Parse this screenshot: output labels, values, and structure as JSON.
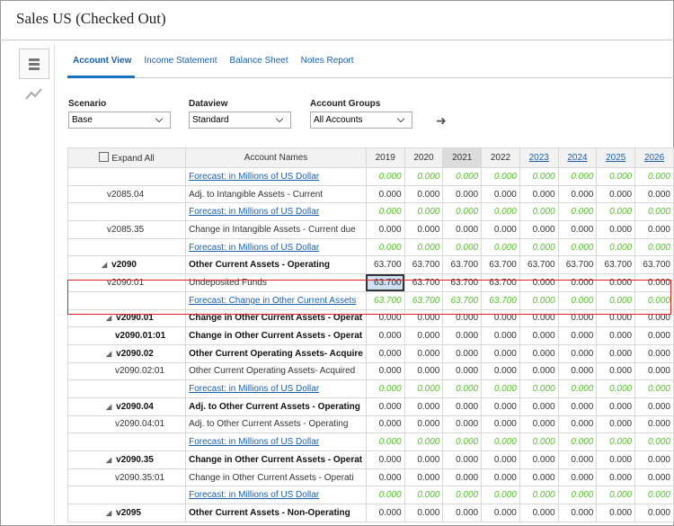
{
  "header": {
    "title": "Sales US (Checked Out)"
  },
  "tabs": [
    "Account View",
    "Income Statement",
    "Balance Sheet",
    "Notes Report"
  ],
  "filters": [
    {
      "label": "Scenario",
      "value": "Base"
    },
    {
      "label": "Dataview",
      "value": "Standard"
    },
    {
      "label": "Account Groups",
      "value": "All Accounts"
    }
  ],
  "table": {
    "expand_all": "Expand All",
    "columns": [
      "Account Names",
      "2019",
      "2020",
      "2021",
      "2022",
      "2023",
      "2024",
      "2025",
      "2026"
    ],
    "rows": [
      {
        "name": "Forecast: in Millions of US Dollar",
        "forecast": true,
        "cells": [
          "0.000",
          "0.000",
          "0.000",
          "0.000",
          "0.000",
          "0.000",
          "0.000",
          "0.000"
        ]
      },
      {
        "code": "v2085.04",
        "name": "Adj. to Intangible Assets - Current",
        "cells": [
          "0.000",
          "0.000",
          "0.000",
          "0.000",
          "0.000",
          "0.000",
          "0.000",
          "0.000"
        ]
      },
      {
        "name": "Forecast: in Millions of US Dollar",
        "forecast": true,
        "cells": [
          "0.000",
          "0.000",
          "0.000",
          "0.000",
          "0.000",
          "0.000",
          "0.000",
          "0.000"
        ]
      },
      {
        "code": "v2085.35",
        "name": "Change in Intangible Assets - Current due",
        "cells": [
          "0.000",
          "0.000",
          "0.000",
          "0.000",
          "0.000",
          "0.000",
          "0.000",
          "0.000"
        ]
      },
      {
        "name": "Forecast: in Millions of US Dollar",
        "forecast": true,
        "cells": [
          "0.000",
          "0.000",
          "0.000",
          "0.000",
          "0.000",
          "0.000",
          "0.000",
          "0.000"
        ]
      },
      {
        "code": "v2090",
        "name": "Other Current Assets - Operating",
        "bold": true,
        "cells": [
          "63.700",
          "63.700",
          "63.700",
          "63.700",
          "63.700",
          "63.700",
          "63.700",
          "63.700"
        ]
      },
      {
        "code": "v2090:01",
        "name": "Undeposited Funds",
        "cells": [
          "63.700",
          "63.700",
          "63.700",
          "63.700",
          "0.000",
          "0.000",
          "0.000",
          "0.000"
        ]
      },
      {
        "name": "Forecast: Change in Other Current Assets",
        "forecast": true,
        "cells": [
          "63.700",
          "63.700",
          "63.700",
          "63.700",
          "0.000",
          "0.000",
          "0.000",
          "0.000"
        ]
      },
      {
        "code": "v2090.01",
        "name": "Change in Other Current Assets - Operat",
        "bold": true,
        "cells": [
          "0.000",
          "0.000",
          "0.000",
          "0.000",
          "0.000",
          "0.000",
          "0.000",
          "0.000"
        ]
      },
      {
        "code": "v2090.01:01",
        "name": "Change in Other Current Assets - Operat",
        "bold": true,
        "cells": [
          "0.000",
          "0.000",
          "0.000",
          "0.000",
          "0.000",
          "0.000",
          "0.000",
          "0.000"
        ]
      },
      {
        "code": "v2090.02",
        "name": "Other Current Operating Assets- Acquire",
        "bold": true,
        "cells": [
          "0.000",
          "0.000",
          "0.000",
          "0.000",
          "0.000",
          "0.000",
          "0.000",
          "0.000"
        ]
      },
      {
        "code": "v2090.02:01",
        "name": "Other Current Operating Assets- Acquired",
        "cells": [
          "0.000",
          "0.000",
          "0.000",
          "0.000",
          "0.000",
          "0.000",
          "0.000",
          "0.000"
        ]
      },
      {
        "name": "Forecast: in Millions of US Dollar",
        "forecast": true,
        "cells": [
          "0.000",
          "0.000",
          "0.000",
          "0.000",
          "0.000",
          "0.000",
          "0.000",
          "0.000"
        ]
      },
      {
        "code": "v2090.04",
        "name": "Adj. to Other Current Assets - Operating",
        "bold": true,
        "cells": [
          "0.000",
          "0.000",
          "0.000",
          "0.000",
          "0.000",
          "0.000",
          "0.000",
          "0.000"
        ]
      },
      {
        "code": "v2090.04:01",
        "name": "Adj. to Other Current Assets - Operating",
        "cells": [
          "0.000",
          "0.000",
          "0.000",
          "0.000",
          "0.000",
          "0.000",
          "0.000",
          "0.000"
        ]
      },
      {
        "name": "Forecast: in Millions of US Dollar",
        "forecast": true,
        "cells": [
          "0.000",
          "0.000",
          "0.000",
          "0.000",
          "0.000",
          "0.000",
          "0.000",
          "0.000"
        ]
      },
      {
        "code": "v2090.35",
        "name": "Change in Other Current Assets - Operat",
        "bold": true,
        "cells": [
          "0.000",
          "0.000",
          "0.000",
          "0.000",
          "0.000",
          "0.000",
          "0.000",
          "0.000"
        ]
      },
      {
        "code": "v2090.35:01",
        "name": "Change in Other Current Assets - Operati",
        "cells": [
          "0.000",
          "0.000",
          "0.000",
          "0.000",
          "0.000",
          "0.000",
          "0.000",
          "0.000"
        ]
      },
      {
        "name": "Forecast: in Millions of US Dollar",
        "forecast": true,
        "cells": [
          "0.000",
          "0.000",
          "0.000",
          "0.000",
          "0.000",
          "0.000",
          "0.000",
          "0.000"
        ]
      },
      {
        "code": "v2095",
        "name": "Other Current Assets - Non-Operating",
        "bold": true,
        "cells": [
          "0.000",
          "0.000",
          "0.000",
          "0.000",
          "0.000",
          "0.000",
          "0.000",
          "0.000"
        ]
      }
    ]
  }
}
